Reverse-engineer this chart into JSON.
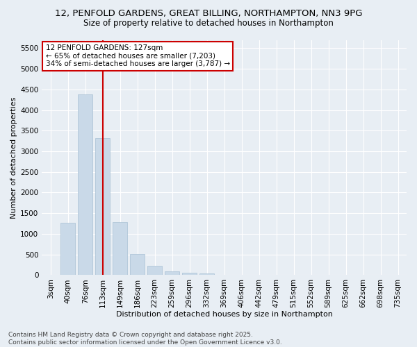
{
  "title1": "12, PENFOLD GARDENS, GREAT BILLING, NORTHAMPTON, NN3 9PG",
  "title2": "Size of property relative to detached houses in Northampton",
  "xlabel": "Distribution of detached houses by size in Northampton",
  "ylabel": "Number of detached properties",
  "categories": [
    "3sqm",
    "40sqm",
    "76sqm",
    "113sqm",
    "149sqm",
    "186sqm",
    "223sqm",
    "259sqm",
    "296sqm",
    "332sqm",
    "369sqm",
    "406sqm",
    "442sqm",
    "479sqm",
    "515sqm",
    "552sqm",
    "589sqm",
    "625sqm",
    "662sqm",
    "698sqm",
    "735sqm"
  ],
  "values": [
    0,
    1270,
    4380,
    3320,
    1280,
    510,
    220,
    90,
    60,
    40,
    0,
    0,
    0,
    0,
    0,
    0,
    0,
    0,
    0,
    0,
    0
  ],
  "bar_color": "#c9d9e8",
  "bar_edgecolor": "#a8c0d4",
  "vline_x": 3,
  "vline_color": "#cc0000",
  "annotation_line1": "12 PENFOLD GARDENS: 127sqm",
  "annotation_line2": "← 65% of detached houses are smaller (7,203)",
  "annotation_line3": "34% of semi-detached houses are larger (3,787) →",
  "annotation_box_color": "#ffffff",
  "annotation_box_edgecolor": "#cc0000",
  "ylim": [
    0,
    5700
  ],
  "yticks": [
    0,
    500,
    1000,
    1500,
    2000,
    2500,
    3000,
    3500,
    4000,
    4500,
    5000,
    5500
  ],
  "footer1": "Contains HM Land Registry data © Crown copyright and database right 2025.",
  "footer2": "Contains public sector information licensed under the Open Government Licence v3.0.",
  "bg_color": "#e8eef4",
  "plot_bg_color": "#e8eef4",
  "grid_color": "#ffffff",
  "title1_fontsize": 9.5,
  "title2_fontsize": 8.5,
  "xlabel_fontsize": 8,
  "ylabel_fontsize": 8,
  "tick_fontsize": 7.5,
  "annotation_fontsize": 7.5,
  "footer_fontsize": 6.5
}
